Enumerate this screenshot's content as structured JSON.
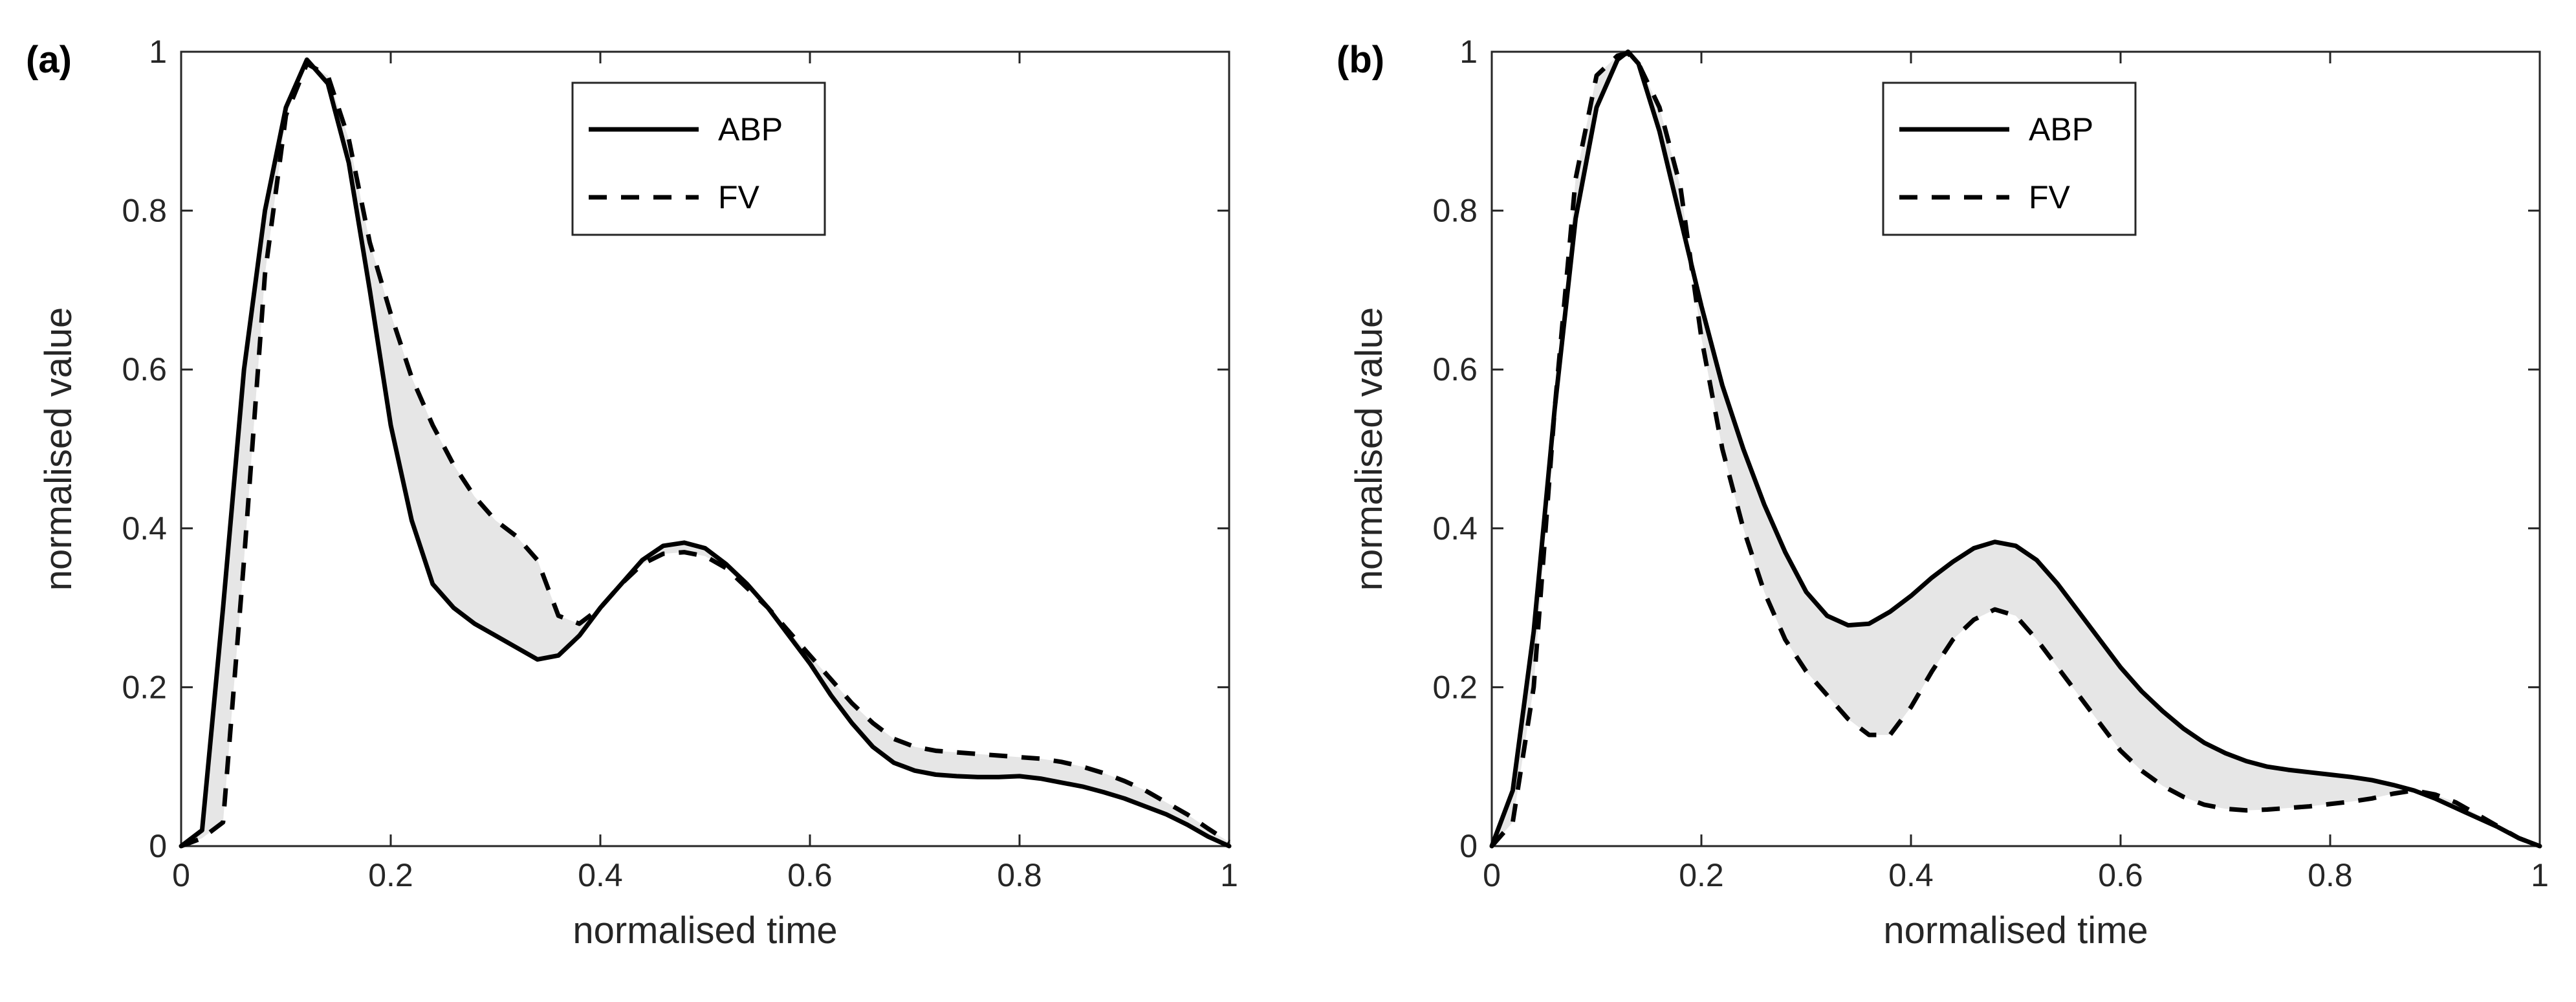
{
  "chart_data": [
    {
      "type": "line",
      "panel_label": "(a)",
      "xlabel": "normalised time",
      "ylabel": "normalised value",
      "xlim": [
        0,
        1
      ],
      "ylim": [
        0,
        1
      ],
      "xticks": [
        0,
        0.2,
        0.4,
        0.6,
        0.8,
        1
      ],
      "yticks": [
        0,
        0.2,
        0.4,
        0.6,
        0.8,
        1
      ],
      "xtick_labels": [
        "0",
        "0.2",
        "0.4",
        "0.6",
        "0.8",
        "1"
      ],
      "ytick_labels": [
        "0",
        "0.2",
        "0.4",
        "0.6",
        "0.8",
        "1"
      ],
      "grid": false,
      "legend_position": "top-center",
      "shaded_area_between_series": true,
      "shade_color": "#e6e6e6",
      "series": [
        {
          "name": "ABP",
          "line_style": "solid",
          "color": "#000000",
          "x": [
            0,
            0.02,
            0.04,
            0.06,
            0.08,
            0.1,
            0.12,
            0.14,
            0.16,
            0.18,
            0.2,
            0.22,
            0.24,
            0.26,
            0.28,
            0.3,
            0.32,
            0.34,
            0.36,
            0.38,
            0.4,
            0.42,
            0.44,
            0.46,
            0.48,
            0.5,
            0.52,
            0.54,
            0.56,
            0.58,
            0.6,
            0.62,
            0.64,
            0.66,
            0.68,
            0.7,
            0.72,
            0.74,
            0.76,
            0.78,
            0.8,
            0.82,
            0.84,
            0.86,
            0.88,
            0.9,
            0.92,
            0.94,
            0.96,
            0.98,
            1
          ],
          "y": [
            0,
            0.02,
            0.3,
            0.6,
            0.8,
            0.93,
            0.99,
            0.96,
            0.86,
            0.7,
            0.53,
            0.41,
            0.33,
            0.3,
            0.28,
            0.265,
            0.25,
            0.235,
            0.24,
            0.265,
            0.3,
            0.33,
            0.36,
            0.378,
            0.382,
            0.375,
            0.355,
            0.33,
            0.3,
            0.265,
            0.23,
            0.19,
            0.155,
            0.125,
            0.105,
            0.095,
            0.09,
            0.088,
            0.087,
            0.087,
            0.088,
            0.085,
            0.08,
            0.075,
            0.068,
            0.06,
            0.05,
            0.04,
            0.027,
            0.012,
            0
          ]
        },
        {
          "name": "FV",
          "line_style": "dashed",
          "color": "#000000",
          "x": [
            0,
            0.02,
            0.04,
            0.06,
            0.08,
            0.1,
            0.12,
            0.14,
            0.16,
            0.18,
            0.2,
            0.22,
            0.24,
            0.26,
            0.28,
            0.3,
            0.32,
            0.34,
            0.36,
            0.38,
            0.4,
            0.42,
            0.44,
            0.46,
            0.48,
            0.5,
            0.52,
            0.54,
            0.56,
            0.58,
            0.6,
            0.62,
            0.64,
            0.66,
            0.68,
            0.7,
            0.72,
            0.74,
            0.76,
            0.78,
            0.8,
            0.82,
            0.84,
            0.86,
            0.88,
            0.9,
            0.92,
            0.94,
            0.96,
            0.98,
            1
          ],
          "y": [
            0,
            0.01,
            0.03,
            0.36,
            0.72,
            0.92,
            0.985,
            0.97,
            0.89,
            0.76,
            0.67,
            0.59,
            0.53,
            0.48,
            0.44,
            0.41,
            0.39,
            0.36,
            0.29,
            0.28,
            0.3,
            0.33,
            0.355,
            0.368,
            0.37,
            0.365,
            0.35,
            0.325,
            0.3,
            0.27,
            0.24,
            0.21,
            0.18,
            0.155,
            0.135,
            0.125,
            0.12,
            0.118,
            0.116,
            0.114,
            0.112,
            0.11,
            0.106,
            0.1,
            0.092,
            0.082,
            0.07,
            0.055,
            0.04,
            0.022,
            0.005
          ]
        }
      ]
    },
    {
      "type": "line",
      "panel_label": "(b)",
      "xlabel": "normalised time",
      "ylabel": "normalised value",
      "xlim": [
        0,
        1
      ],
      "ylim": [
        0,
        1
      ],
      "xticks": [
        0,
        0.2,
        0.4,
        0.6,
        0.8,
        1
      ],
      "yticks": [
        0,
        0.2,
        0.4,
        0.6,
        0.8,
        1
      ],
      "xtick_labels": [
        "0",
        "0.2",
        "0.4",
        "0.6",
        "0.8",
        "1"
      ],
      "ytick_labels": [
        "0",
        "0.2",
        "0.4",
        "0.6",
        "0.8",
        "1"
      ],
      "grid": false,
      "legend_position": "top-center",
      "shaded_area_between_series": true,
      "shade_color": "#e6e6e6",
      "series": [
        {
          "name": "ABP",
          "line_style": "solid",
          "color": "#000000",
          "x": [
            0,
            0.02,
            0.04,
            0.06,
            0.08,
            0.1,
            0.12,
            0.13,
            0.14,
            0.16,
            0.18,
            0.2,
            0.22,
            0.24,
            0.26,
            0.28,
            0.3,
            0.32,
            0.34,
            0.36,
            0.38,
            0.4,
            0.42,
            0.44,
            0.46,
            0.48,
            0.5,
            0.52,
            0.54,
            0.56,
            0.58,
            0.6,
            0.62,
            0.64,
            0.66,
            0.68,
            0.7,
            0.72,
            0.74,
            0.76,
            0.78,
            0.8,
            0.82,
            0.84,
            0.86,
            0.88,
            0.9,
            0.92,
            0.94,
            0.96,
            0.98,
            1
          ],
          "y": [
            0,
            0.07,
            0.27,
            0.55,
            0.79,
            0.93,
            0.99,
            1.0,
            0.985,
            0.9,
            0.79,
            0.68,
            0.58,
            0.5,
            0.43,
            0.37,
            0.32,
            0.29,
            0.278,
            0.28,
            0.295,
            0.315,
            0.338,
            0.358,
            0.375,
            0.383,
            0.378,
            0.36,
            0.33,
            0.295,
            0.26,
            0.225,
            0.195,
            0.17,
            0.148,
            0.13,
            0.117,
            0.107,
            0.1,
            0.096,
            0.093,
            0.09,
            0.087,
            0.083,
            0.077,
            0.07,
            0.06,
            0.048,
            0.036,
            0.024,
            0.01,
            0
          ]
        },
        {
          "name": "FV",
          "line_style": "dashed",
          "color": "#000000",
          "x": [
            0,
            0.02,
            0.04,
            0.06,
            0.08,
            0.1,
            0.12,
            0.13,
            0.14,
            0.16,
            0.18,
            0.2,
            0.22,
            0.24,
            0.26,
            0.28,
            0.3,
            0.32,
            0.34,
            0.36,
            0.38,
            0.4,
            0.42,
            0.44,
            0.46,
            0.48,
            0.5,
            0.52,
            0.54,
            0.56,
            0.58,
            0.6,
            0.62,
            0.64,
            0.66,
            0.68,
            0.7,
            0.72,
            0.74,
            0.76,
            0.78,
            0.8,
            0.82,
            0.84,
            0.86,
            0.88,
            0.9,
            0.92,
            0.94,
            0.96,
            0.98,
            1
          ],
          "y": [
            0,
            0.03,
            0.2,
            0.55,
            0.84,
            0.97,
            0.995,
            0.998,
            0.985,
            0.93,
            0.83,
            0.64,
            0.5,
            0.4,
            0.32,
            0.26,
            0.22,
            0.19,
            0.16,
            0.14,
            0.14,
            0.175,
            0.22,
            0.26,
            0.285,
            0.298,
            0.29,
            0.26,
            0.225,
            0.19,
            0.155,
            0.12,
            0.095,
            0.076,
            0.062,
            0.052,
            0.047,
            0.045,
            0.046,
            0.048,
            0.05,
            0.053,
            0.056,
            0.06,
            0.066,
            0.07,
            0.065,
            0.055,
            0.04,
            0.025,
            0.01,
            0
          ]
        }
      ]
    }
  ]
}
